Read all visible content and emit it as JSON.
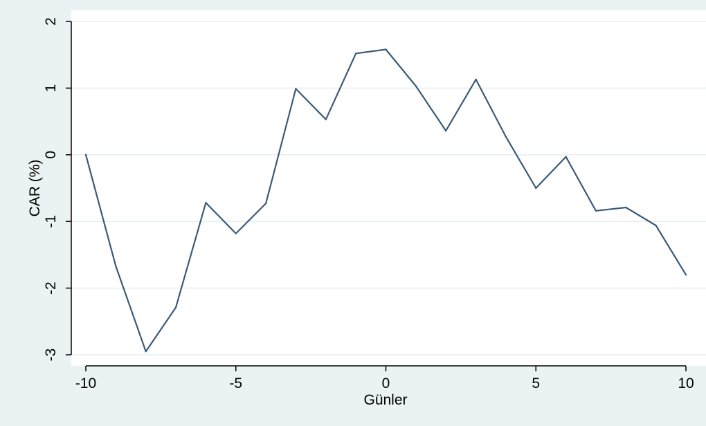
{
  "chart_data": {
    "type": "line",
    "title": "",
    "xlabel": "Günler",
    "ylabel": "CAR (%)",
    "xlim": [
      -10,
      10
    ],
    "ylim": [
      -3,
      2
    ],
    "xticks": [
      -10,
      -5,
      0,
      5,
      10
    ],
    "yticks": [
      -3,
      -2,
      -1,
      0,
      1,
      2
    ],
    "xtick_labels": [
      "-10",
      "-5",
      "0",
      "5",
      "10"
    ],
    "ytick_labels": [
      "-3",
      "-2",
      "-1",
      "0",
      "1",
      "2"
    ],
    "grid": true,
    "legend": "none",
    "series": [
      {
        "x": [
          -10,
          -9,
          -8,
          -7,
          -6,
          -5,
          -4,
          -3,
          -2,
          -1,
          0,
          1,
          2,
          3,
          4,
          5,
          6,
          7,
          8,
          9,
          10
        ],
        "values": [
          0.0,
          -1.67,
          -2.95,
          -2.29,
          -0.72,
          -1.18,
          -0.73,
          0.99,
          0.53,
          1.52,
          1.58,
          1.03,
          0.36,
          1.13,
          0.27,
          -0.5,
          -0.03,
          -0.84,
          -0.79,
          -1.06,
          -1.8
        ],
        "color": "#3a5a78"
      }
    ]
  },
  "colors": {
    "page_background": "#eaf2f3",
    "plot_background": "#ffffff",
    "grid": "#e6eef0",
    "axis": "#000000",
    "line": "#3a5a78"
  }
}
